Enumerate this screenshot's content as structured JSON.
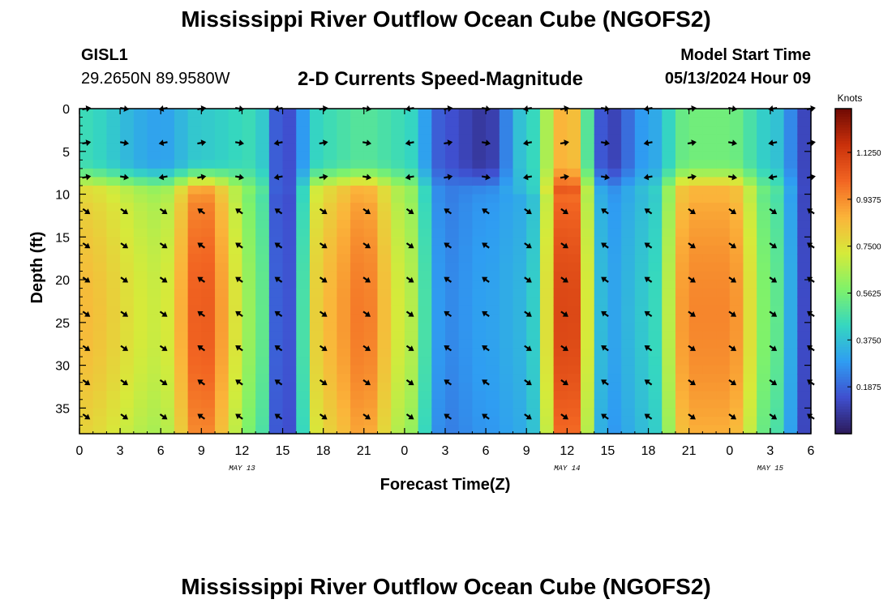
{
  "header": {
    "title": "Mississippi River Outflow Ocean Cube (NGOFS2)",
    "station": "GISL1",
    "coords": "29.2650N  89.9580W",
    "subtitle": "2-D Currents Speed-Magnitude",
    "start_label": "Model Start Time",
    "start_value": "05/13/2024 Hour 09"
  },
  "footer": {
    "title": "Mississippi River Outflow Ocean Cube (NGOFS2)"
  },
  "colors": {
    "scale": [
      "#2c1a5a",
      "#3f4fcf",
      "#2f9df2",
      "#35d7c0",
      "#7ff26a",
      "#d6ea3a",
      "#fbb43a",
      "#f26522",
      "#c9300b",
      "#6f0a04"
    ],
    "axis": "#000000",
    "arrow": "#000000"
  },
  "chart_data": {
    "type": "heatmap",
    "xlabel": "Forecast Time(Z)",
    "ylabel": "Depth (ft)",
    "x_range": [
      0,
      54
    ],
    "x_ticks": [
      0,
      3,
      6,
      9,
      12,
      15,
      18,
      21,
      24,
      27,
      30,
      33,
      36,
      39,
      42,
      45,
      48,
      51,
      54
    ],
    "x_tick_labels": [
      "0",
      "3",
      "6",
      "9",
      "12",
      "15",
      "18",
      "21",
      "0",
      "3",
      "6",
      "9",
      "12",
      "15",
      "18",
      "21",
      "0",
      "3",
      "6"
    ],
    "date_labels": [
      {
        "text": "MAY 13",
        "x": 12
      },
      {
        "text": "MAY 14",
        "x": 36
      },
      {
        "text": "MAY 15",
        "x": 51
      }
    ],
    "y_range": [
      0,
      38
    ],
    "y_ticks": [
      0,
      5,
      10,
      15,
      20,
      25,
      30,
      35
    ],
    "y_tick_labels": [
      "0",
      "5",
      "10",
      "15",
      "20",
      "25",
      "30",
      "35"
    ],
    "colorbar": {
      "label": "Knots",
      "range": [
        0,
        1.3
      ],
      "tick_values": [
        1.125,
        0.9375,
        0.75,
        0.5625,
        0.375,
        0.1875
      ],
      "tick_labels": [
        "1.1250",
        "0.9375",
        "0.7500",
        "0.5625",
        "0.3750",
        "0.1875"
      ]
    },
    "depths": [
      0,
      4,
      8,
      12,
      16,
      20,
      24,
      28,
      32,
      36
    ],
    "arrow_times": [
      0.5,
      3.3,
      6.2,
      9,
      11.8,
      14.7,
      18,
      21.2,
      24.4,
      27.2,
      30,
      33.1,
      35.8,
      38.8,
      42,
      45.2,
      48.2,
      51.2,
      54
    ],
    "speed_description": "current speed in knots; high at depth (10-38 ft) during hours 0-13, 17-25, 34-38 and 43-52; low (dark) bands near hours 14-16, 27-33, 39-41 and 53-54",
    "speed_grid_step_hours": 1,
    "speed_grid_step_ft": 1,
    "surface_speed_profile": [
      {
        "t": 0,
        "surface": 0.45,
        "deep": 0.85
      },
      {
        "t": 6,
        "surface": 0.3,
        "deep": 0.7
      },
      {
        "t": 9,
        "surface": 0.4,
        "deep": 1.05
      },
      {
        "t": 13,
        "surface": 0.45,
        "deep": 0.6
      },
      {
        "t": 15,
        "surface": 0.12,
        "deep": 0.1
      },
      {
        "t": 18,
        "surface": 0.45,
        "deep": 0.85
      },
      {
        "t": 21,
        "surface": 0.5,
        "deep": 0.98
      },
      {
        "t": 24,
        "surface": 0.45,
        "deep": 0.7
      },
      {
        "t": 27,
        "surface": 0.15,
        "deep": 0.25
      },
      {
        "t": 30,
        "surface": 0.08,
        "deep": 0.3
      },
      {
        "t": 33,
        "surface": 0.4,
        "deep": 0.35
      },
      {
        "t": 36,
        "surface": 0.9,
        "deep": 1.15
      },
      {
        "t": 39,
        "surface": 0.1,
        "deep": 0.3
      },
      {
        "t": 42,
        "surface": 0.3,
        "deep": 0.4
      },
      {
        "t": 45,
        "surface": 0.55,
        "deep": 0.95
      },
      {
        "t": 48,
        "surface": 0.55,
        "deep": 0.95
      },
      {
        "t": 51,
        "surface": 0.4,
        "deep": 0.55
      },
      {
        "t": 54,
        "surface": 0.1,
        "deep": 0.1
      }
    ]
  }
}
